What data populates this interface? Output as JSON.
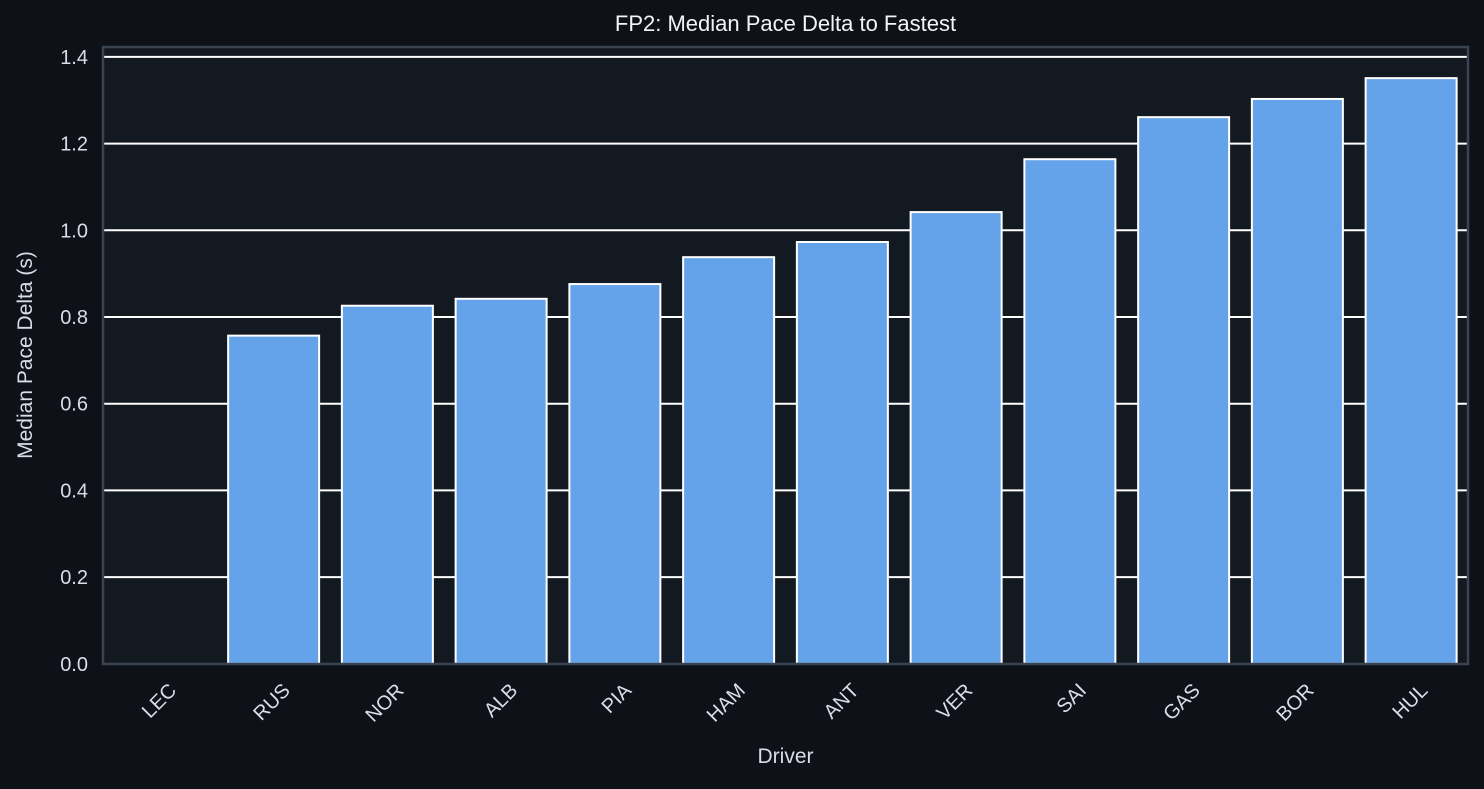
{
  "colors": {
    "figure_bg": "#0e1117",
    "axes_bg": "#131920",
    "axes_border": "#3a4352",
    "grid": "#ffffff",
    "bar_fill": "#64a3e9",
    "bar_edge": "#ffffff",
    "text": "#d8dde6",
    "title": "#f2f4f7"
  },
  "chart_data": {
    "type": "bar",
    "title": "FP2: Median Pace Delta to Fastest",
    "xlabel": "Driver",
    "ylabel": "Median Pace Delta (s)",
    "categories": [
      "LEC",
      "RUS",
      "NOR",
      "ALB",
      "PIA",
      "HAM",
      "ANT",
      "VER",
      "SAI",
      "GAS",
      "BOR",
      "HUL"
    ],
    "values": [
      0.0,
      0.757,
      0.826,
      0.842,
      0.876,
      0.938,
      0.973,
      1.042,
      1.164,
      1.261,
      1.303,
      1.351
    ],
    "ylim": [
      0.0,
      1.42
    ],
    "yticks": [
      0.0,
      0.2,
      0.4,
      0.6,
      0.8,
      1.0,
      1.2,
      1.4
    ],
    "ytick_labels": [
      "0.0",
      "0.2",
      "0.4",
      "0.6",
      "0.8",
      "1.0",
      "1.2",
      "1.4"
    ],
    "xtick_rotation": -45,
    "grid": "horizontal",
    "legend": "none"
  }
}
